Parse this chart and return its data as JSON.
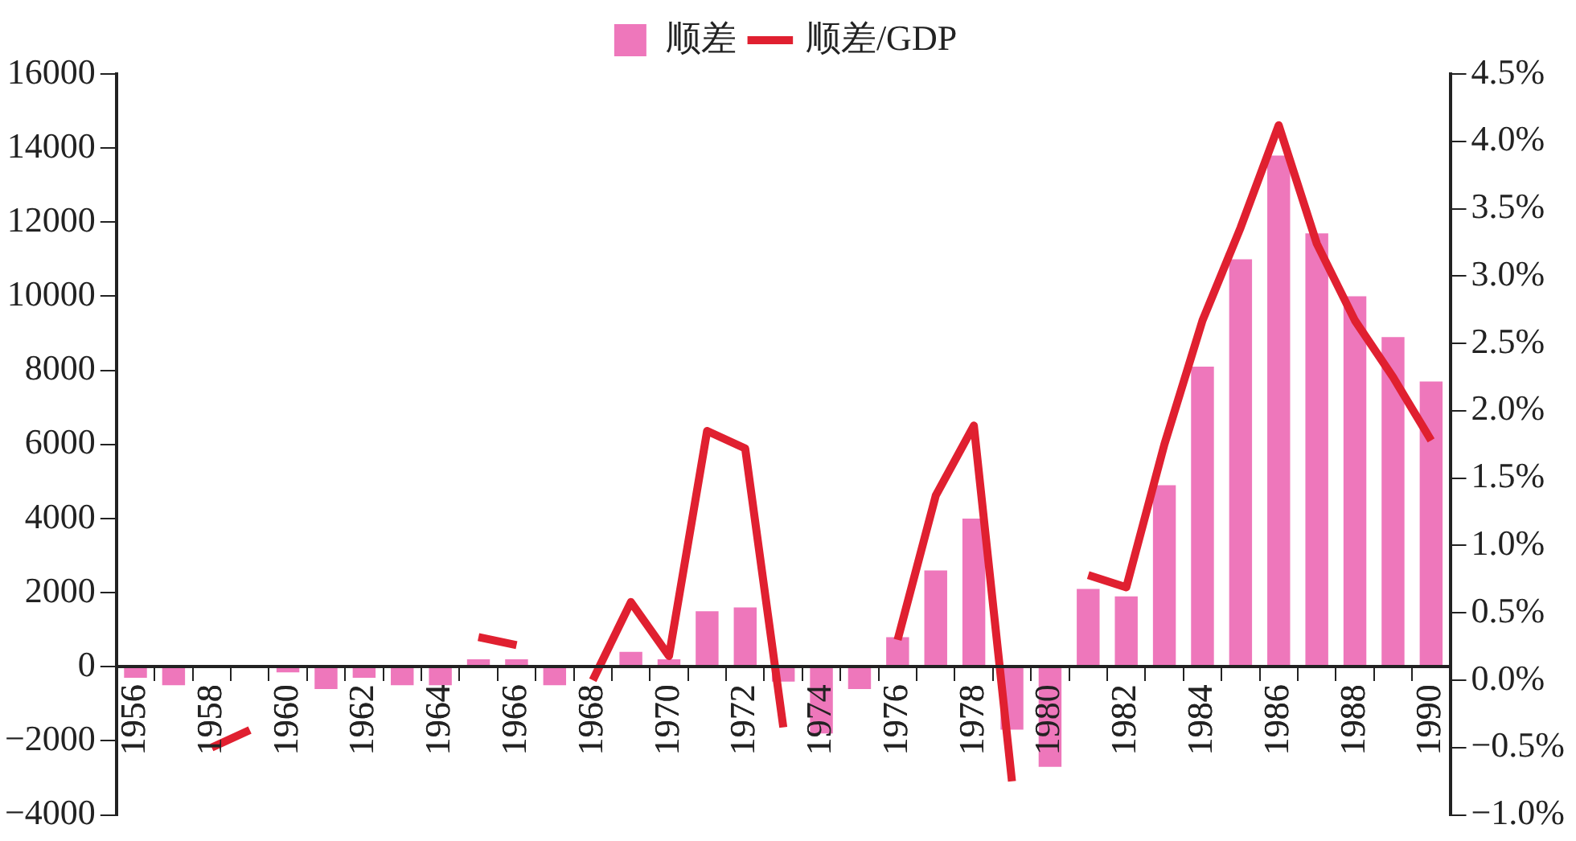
{
  "chart_data": {
    "type": "bar",
    "categories": [
      "1956",
      null,
      "1958",
      null,
      "1960",
      null,
      "1962",
      null,
      "1964",
      null,
      "1966",
      null,
      "1968",
      null,
      "1970",
      null,
      "1972",
      null,
      "1974",
      null,
      "1976",
      null,
      "1978",
      null,
      "1980",
      null,
      "1982",
      null,
      "1984",
      null,
      "1986",
      null,
      "1988",
      null,
      "1990"
    ],
    "series": [
      {
        "name": "顺差",
        "color": "#ee77bb",
        "values": [
          -300,
          -500,
          0,
          0,
          -150,
          -600,
          -300,
          -500,
          -500,
          200,
          200,
          -500,
          0,
          400,
          200,
          1500,
          1600,
          -400,
          -1800,
          -600,
          800,
          2600,
          4000,
          -1700,
          -2700,
          2100,
          1900,
          4900,
          8100,
          11000,
          13800,
          11700,
          10000,
          8900,
          7700
        ]
      },
      {
        "name": "顺差/GDP",
        "type": "line",
        "axis": "y2",
        "color": "#e02030",
        "values": [
          null,
          null,
          -0.5,
          -0.37,
          null,
          null,
          null,
          null,
          null,
          0.32,
          0.26,
          null,
          0.0,
          0.58,
          0.18,
          1.85,
          1.72,
          -0.35,
          null,
          null,
          0.3,
          1.37,
          1.89,
          -0.75,
          null,
          0.78,
          0.69,
          1.75,
          2.67,
          3.36,
          4.12,
          3.24,
          2.67,
          2.25,
          1.78
        ]
      }
    ],
    "ylim": [
      -4000,
      16000
    ],
    "yticks": [
      {
        "value": -4000,
        "label": "−4000"
      },
      {
        "value": -2000,
        "label": "−2000"
      },
      0,
      2000,
      4000,
      6000,
      8000,
      10000,
      12000,
      14000,
      16000
    ],
    "y2lim": [
      -1,
      4.5
    ],
    "y2ticks": [
      {
        "value": -1,
        "label": "−1.0%"
      },
      {
        "value": -0.5,
        "label": "−0.5%"
      },
      {
        "value": 0,
        "label": "0.0%"
      },
      {
        "value": 0.5,
        "label": "0.5%"
      },
      {
        "value": 1,
        "label": "1.0%"
      },
      {
        "value": 1.5,
        "label": "1.5%"
      },
      {
        "value": 2,
        "label": "2.0%"
      },
      {
        "value": 2.5,
        "label": "2.5%"
      },
      {
        "value": 3,
        "label": "3.0%"
      },
      {
        "value": 3.5,
        "label": "3.5%"
      },
      {
        "value": 4,
        "label": "4.0%"
      },
      {
        "value": 4.5,
        "label": "4.5%"
      }
    ],
    "grid": false,
    "legend": "top",
    "marker": "none"
  }
}
